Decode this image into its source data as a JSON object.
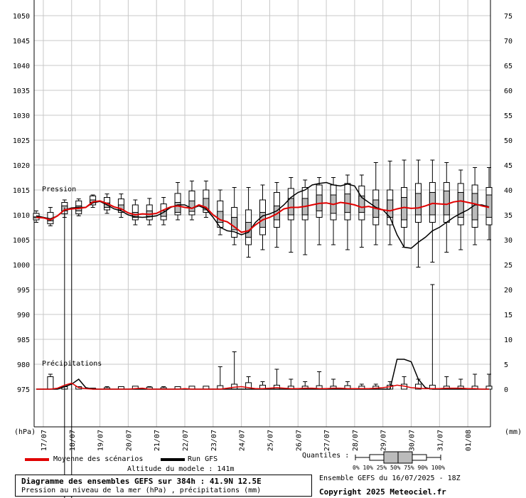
{
  "chart_data": {
    "type": "boxplot-line",
    "left_axis": {
      "unit": "(hPa)",
      "ylim": [
        975,
        1050
      ],
      "ticks": [
        1050,
        1045,
        1040,
        1035,
        1030,
        1025,
        1020,
        1015,
        1010,
        1005,
        1000,
        995,
        990,
        985,
        980,
        975
      ]
    },
    "right_axis": {
      "unit": "(mm)",
      "ylim": [
        0,
        75
      ],
      "ticks": [
        75,
        70,
        65,
        60,
        55,
        50,
        45,
        40,
        35,
        30,
        25,
        20,
        15,
        10,
        5,
        0
      ]
    },
    "x_tick_labels": [
      "17/07",
      "18/07",
      "19/07",
      "20/07",
      "21/07",
      "22/07",
      "23/07",
      "24/07",
      "25/07",
      "26/07",
      "27/07",
      "28/07",
      "29/07",
      "30/07",
      "31/07",
      "01/08"
    ],
    "panel_labels": {
      "pressure": "Pression",
      "precip": "Précipitations"
    },
    "series": [
      {
        "name": "Moyenne des scénarios",
        "color": "#e00000"
      },
      {
        "name": "Run GFS",
        "color": "#000000"
      }
    ],
    "x_hours": [
      0,
      6,
      12,
      18,
      24,
      30,
      36,
      42,
      48,
      54,
      60,
      66,
      72,
      78,
      84,
      90,
      96,
      102,
      108,
      114,
      120,
      126,
      132,
      138,
      144,
      150,
      156,
      162,
      168,
      174,
      180,
      186,
      192,
      198,
      204,
      210,
      216,
      222,
      228,
      234,
      240,
      246,
      252,
      258,
      264,
      270,
      276,
      282,
      288,
      294,
      300,
      306,
      312,
      318,
      324,
      330,
      336,
      342,
      348,
      354,
      360,
      366,
      372,
      378,
      384
    ],
    "pressure_mean": [
      1009.5,
      1009.4,
      1009.0,
      1009.8,
      1011.0,
      1011.2,
      1011.3,
      1011.5,
      1012.6,
      1012.8,
      1012.3,
      1011.6,
      1011.2,
      1010.4,
      1010.0,
      1010.2,
      1010.1,
      1010.3,
      1011.0,
      1011.6,
      1011.8,
      1011.5,
      1011.3,
      1012.0,
      1011.5,
      1010.0,
      1009.0,
      1008.6,
      1007.6,
      1006.5,
      1006.8,
      1008.0,
      1009.0,
      1009.5,
      1010.2,
      1011.2,
      1011.5,
      1011.5,
      1011.7,
      1012.0,
      1012.3,
      1012.4,
      1012.1,
      1012.5,
      1012.3,
      1012.0,
      1011.5,
      1011.7,
      1011.3,
      1011.0,
      1010.8,
      1011.2,
      1011.5,
      1011.3,
      1011.4,
      1011.8,
      1012.3,
      1012.2,
      1012.1,
      1012.6,
      1012.8,
      1012.5,
      1012.2,
      1011.8,
      1011.5
    ],
    "pressure_gfs": [
      1009.8,
      1009.5,
      1009.2,
      1009.8,
      1011.0,
      1011.4,
      1011.5,
      1011.5,
      1012.4,
      1012.7,
      1012.0,
      1011.2,
      1010.8,
      1010.0,
      1009.6,
      1009.5,
      1009.6,
      1009.8,
      1010.5,
      1011.5,
      1012.0,
      1012.0,
      1011.3,
      1011.8,
      1011.2,
      1009.5,
      1007.5,
      1006.8,
      1006.6,
      1006.0,
      1006.5,
      1008.5,
      1009.8,
      1010.2,
      1010.8,
      1012.0,
      1013.5,
      1014.5,
      1015.0,
      1016.0,
      1016.3,
      1016.5,
      1016.0,
      1015.8,
      1016.2,
      1015.8,
      1013.5,
      1012.5,
      1011.5,
      1011.0,
      1009.5,
      1006.0,
      1003.5,
      1003.3,
      1004.5,
      1005.5,
      1006.8,
      1007.5,
      1008.5,
      1009.5,
      1010.3,
      1011.0,
      1012.0,
      1012.0,
      1011.6
    ],
    "pressure_boxes_every_12h": [
      [
        1009.0,
        1009.4,
        1009.6,
        1010.3
      ],
      [
        1008.2,
        1008.8,
        1009.2,
        1010.5
      ],
      [
        1010.2,
        1010.8,
        1011.8,
        1012.5
      ],
      [
        1010.2,
        1010.8,
        1011.8,
        1012.8
      ],
      [
        1012.0,
        1012.5,
        1013.0,
        1013.8
      ],
      [
        1011.0,
        1011.5,
        1012.4,
        1013.5
      ],
      [
        1010.5,
        1011.0,
        1012.0,
        1013.2
      ],
      [
        1009.0,
        1009.5,
        1010.5,
        1012.0
      ],
      [
        1009.0,
        1009.7,
        1010.8,
        1012.0
      ],
      [
        1009.0,
        1009.7,
        1010.8,
        1012.2
      ],
      [
        1010.0,
        1010.5,
        1012.5,
        1014.3
      ],
      [
        1010.0,
        1010.7,
        1012.8,
        1014.8
      ],
      [
        1010.5,
        1011.0,
        1013.3,
        1015.0
      ],
      [
        1007.5,
        1008.5,
        1010.7,
        1012.8
      ],
      [
        1005.5,
        1007.0,
        1009.5,
        1011.5
      ],
      [
        1004.0,
        1005.5,
        1008.5,
        1011.0
      ],
      [
        1006.0,
        1007.5,
        1010.5,
        1013.0
      ],
      [
        1007.5,
        1009.0,
        1011.8,
        1014.5
      ],
      [
        1009.0,
        1010.0,
        1013.3,
        1015.3
      ],
      [
        1009.0,
        1010.0,
        1013.3,
        1015.5
      ],
      [
        1009.5,
        1010.8,
        1014.0,
        1016.0
      ],
      [
        1009.0,
        1010.3,
        1014.0,
        1016.0
      ],
      [
        1009.0,
        1010.5,
        1014.2,
        1016.3
      ],
      [
        1009.0,
        1010.5,
        1013.8,
        1015.8
      ],
      [
        1008.0,
        1009.5,
        1013.0,
        1015.0
      ],
      [
        1008.0,
        1009.5,
        1013.0,
        1015.0
      ],
      [
        1007.5,
        1009.0,
        1013.5,
        1015.5
      ],
      [
        1008.5,
        1010.0,
        1014.3,
        1016.3
      ],
      [
        1008.5,
        1010.0,
        1014.5,
        1016.5
      ],
      [
        1008.5,
        1010.0,
        1014.8,
        1016.5
      ],
      [
        1008.0,
        1009.5,
        1014.5,
        1016.3
      ],
      [
        1007.5,
        1009.0,
        1014.3,
        1016.0
      ],
      [
        1008.0,
        1009.5,
        1014.0,
        1015.5
      ]
    ],
    "pressure_whiskers_every_12h": [
      [
        1008.5,
        1010.8
      ],
      [
        1007.8,
        1011.5
      ],
      [
        1009.5,
        1013.0
      ],
      [
        1009.8,
        1013.2
      ],
      [
        1011.5,
        1014.0
      ],
      [
        1010.3,
        1014.2
      ],
      [
        1009.5,
        1014.2
      ],
      [
        1008.0,
        1013.0
      ],
      [
        1008.0,
        1013.3
      ],
      [
        1008.0,
        1013.5
      ],
      [
        1009.0,
        1016.5
      ],
      [
        1009.0,
        1016.8
      ],
      [
        1009.5,
        1016.8
      ],
      [
        1006.0,
        1015.0
      ],
      [
        1004.0,
        1015.5
      ],
      [
        1001.5,
        1015.5
      ],
      [
        1003.0,
        1016.0
      ],
      [
        1003.5,
        1016.5
      ],
      [
        1002.5,
        1017.5
      ],
      [
        1002.0,
        1017.0
      ],
      [
        1004.0,
        1017.5
      ],
      [
        1004.0,
        1017.5
      ],
      [
        1003.0,
        1018.0
      ],
      [
        1003.5,
        1018.0
      ],
      [
        1004.0,
        1020.5
      ],
      [
        1004.0,
        1020.8
      ],
      [
        1003.5,
        1021.0
      ],
      [
        999.5,
        1021.0
      ],
      [
        1000.5,
        1021.0
      ],
      [
        1002.5,
        1020.5
      ],
      [
        1003.0,
        1019.0
      ],
      [
        1004.0,
        1019.5
      ],
      [
        1005.0,
        1019.5
      ]
    ],
    "precip_mean_mm": [
      0,
      0,
      0,
      0.2,
      0.8,
      1.2,
      0.3,
      0.1,
      0,
      0,
      0,
      0,
      0,
      0,
      0.1,
      0.2,
      0,
      0,
      0,
      0,
      0,
      0.1,
      0,
      0,
      0,
      0,
      0,
      0.2,
      0.4,
      0.5,
      0.3,
      0.1,
      0.1,
      0.2,
      0.3,
      0.2,
      0.1,
      0.1,
      0.2,
      0.2,
      0.1,
      0.1,
      0.2,
      0.2,
      0.1,
      0.1,
      0.1,
      0.1,
      0.2,
      0.3,
      0.5,
      0.8,
      0.6,
      0.3,
      0.2,
      0.1,
      0.1,
      0.1,
      0.2,
      0.2,
      0.2,
      0.1,
      0.1,
      0,
      0
    ],
    "precip_gfs_mm": [
      0,
      0,
      0,
      0,
      0.5,
      1.0,
      2.0,
      0.3,
      0,
      0,
      0,
      0,
      0,
      0,
      0,
      0,
      0,
      0,
      0,
      0,
      0,
      0,
      0,
      0,
      0,
      0,
      0,
      0,
      0,
      0,
      0,
      0,
      0,
      0,
      0,
      0,
      0,
      0,
      0,
      0,
      0,
      0,
      0,
      0,
      0,
      0,
      0,
      0,
      0,
      0,
      0,
      6,
      6.0,
      5.5,
      2.0,
      0.3,
      0,
      0,
      0,
      0,
      0,
      0,
      0,
      0,
      0
    ],
    "precip_boxes_every_12h": [
      [
        0,
        0,
        0,
        0
      ],
      [
        0,
        0.3,
        1.0,
        2.5
      ],
      [
        0,
        0,
        0.2,
        0.5
      ],
      [
        0,
        0,
        0.3,
        0.5
      ],
      [
        0,
        0,
        0,
        0.2
      ],
      [
        0,
        0,
        0,
        0.3
      ],
      [
        0,
        0,
        0.2,
        0.5
      ],
      [
        0,
        0,
        0.3,
        0.6
      ],
      [
        0,
        0,
        0.1,
        0.4
      ],
      [
        0,
        0,
        0.1,
        0.3
      ],
      [
        0,
        0,
        0.2,
        0.5
      ],
      [
        0,
        0,
        0.2,
        0.6
      ],
      [
        0,
        0,
        0.3,
        0.6
      ],
      [
        0,
        0,
        0.3,
        0.7
      ],
      [
        0,
        0,
        0.4,
        1.0
      ],
      [
        0,
        0.1,
        0.5,
        1.3
      ],
      [
        0,
        0,
        0.3,
        0.8
      ],
      [
        0,
        0,
        0.3,
        0.8
      ],
      [
        0,
        0,
        0.2,
        0.6
      ],
      [
        0,
        0,
        0.2,
        0.6
      ],
      [
        0,
        0,
        0.2,
        0.7
      ],
      [
        0,
        0,
        0.2,
        0.6
      ],
      [
        0,
        0,
        0.2,
        0.7
      ],
      [
        0,
        0,
        0.2,
        0.6
      ],
      [
        0,
        0,
        0.2,
        0.6
      ],
      [
        0,
        0,
        0.3,
        0.8
      ],
      [
        0,
        0,
        0.3,
        1.0
      ],
      [
        0,
        0,
        0.3,
        1.0
      ],
      [
        0,
        0,
        0.3,
        0.8
      ],
      [
        0,
        0,
        0.2,
        0.6
      ],
      [
        0,
        0,
        0.2,
        0.6
      ],
      [
        0,
        0,
        0.2,
        0.6
      ],
      [
        0,
        0,
        0.2,
        0.6
      ]
    ],
    "precip_whisker_max_every_12h": [
      0,
      3.0,
      0.5,
      0.5,
      0.2,
      0.5,
      0.5,
      0.5,
      0.5,
      0.5,
      0.5,
      0.5,
      0.5,
      4.5,
      7.5,
      2.5,
      1.5,
      4.0,
      2.0,
      1.5,
      3.5,
      2.0,
      1.5,
      1.0,
      1.0,
      1.5,
      2.5,
      2.0,
      21.0,
      2.5,
      2.0,
      3.0,
      3.0
    ],
    "fault_lines": [
      {
        "x_hours": 24,
        "to_hpa": 1011.5
      },
      {
        "x_hours": 30,
        "to_hpa": 1011.5
      }
    ]
  },
  "legend": {
    "mean_label": "Moyenne des scénarios",
    "gfs_label": "Run GFS",
    "altitude": "Altitude du modele : 141m",
    "quantiles_title": "Quantiles :",
    "quantiles_labels": "0%  10% 25% 50% 75% 90% 100%"
  },
  "info": {
    "title": "Diagramme des ensembles GEFS sur 384h : 41.9N 12.5E",
    "subtitle": "Pression au niveau de la mer (hPa) , précipitations (mm)",
    "run": "Ensemble GEFS du 16/07/2025 - 18Z",
    "copyright": "Copyright 2025 Meteociel.fr"
  }
}
